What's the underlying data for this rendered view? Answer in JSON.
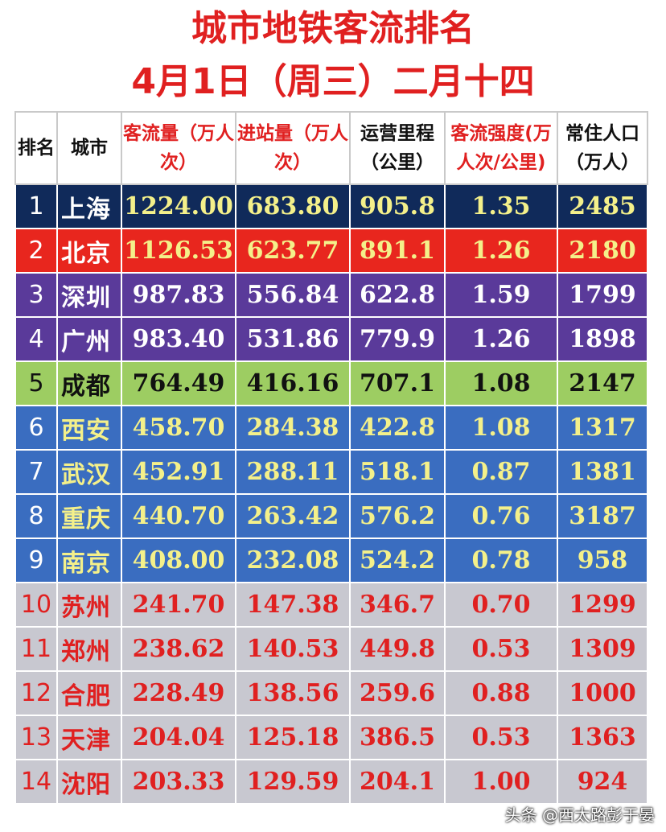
{
  "title": "城市地铁客流排名",
  "date_line": "4月1日（周三）二月十四",
  "headers": {
    "rank": "排名",
    "city": "城市",
    "flow": "客流量（万人次）",
    "entries": "进站量（万人次）",
    "length": "运营里程（公里）",
    "intensity": "客流强度(万人次/公里)",
    "population": "常住人口（万人）"
  },
  "colors": {
    "title_red": "#e02020",
    "navy": "#102a5a",
    "red": "#e8261e",
    "purple": "#5a3a9a",
    "green": "#9dcd62",
    "blue": "#3a6dc0",
    "gray": "#c8c8d0",
    "text_white": "#ffffff",
    "text_yellow": "#f4f08a",
    "text_black": "#111111",
    "text_red": "#e02020"
  },
  "rows": [
    {
      "rank": "1",
      "city": "上海",
      "flow": "1224.00",
      "entries": "683.80",
      "length": "905.8",
      "intensity": "1.35",
      "population": "2485",
      "style": "navy"
    },
    {
      "rank": "2",
      "city": "北京",
      "flow": "1126.53",
      "entries": "623.77",
      "length": "891.1",
      "intensity": "1.26",
      "population": "2180",
      "style": "red"
    },
    {
      "rank": "3",
      "city": "深圳",
      "flow": "987.83",
      "entries": "556.84",
      "length": "622.8",
      "intensity": "1.59",
      "population": "1799",
      "style": "purple"
    },
    {
      "rank": "4",
      "city": "广州",
      "flow": "983.40",
      "entries": "531.86",
      "length": "779.9",
      "intensity": "1.26",
      "population": "1898",
      "style": "purple"
    },
    {
      "rank": "5",
      "city": "成都",
      "flow": "764.49",
      "entries": "416.16",
      "length": "707.1",
      "intensity": "1.08",
      "population": "2147",
      "style": "green"
    },
    {
      "rank": "6",
      "city": "西安",
      "flow": "458.70",
      "entries": "284.38",
      "length": "422.8",
      "intensity": "1.08",
      "population": "1317",
      "style": "blue"
    },
    {
      "rank": "7",
      "city": "武汉",
      "flow": "452.91",
      "entries": "288.11",
      "length": "518.1",
      "intensity": "0.87",
      "population": "1381",
      "style": "blue"
    },
    {
      "rank": "8",
      "city": "重庆",
      "flow": "440.70",
      "entries": "263.42",
      "length": "576.2",
      "intensity": "0.76",
      "population": "3187",
      "style": "blue"
    },
    {
      "rank": "9",
      "city": "南京",
      "flow": "408.00",
      "entries": "232.08",
      "length": "524.2",
      "intensity": "0.78",
      "population": "958",
      "style": "blue"
    },
    {
      "rank": "10",
      "city": "苏州",
      "flow": "241.70",
      "entries": "147.38",
      "length": "346.7",
      "intensity": "0.70",
      "population": "1299",
      "style": "gray"
    },
    {
      "rank": "11",
      "city": "郑州",
      "flow": "238.62",
      "entries": "140.53",
      "length": "449.8",
      "intensity": "0.53",
      "population": "1309",
      "style": "gray"
    },
    {
      "rank": "12",
      "city": "合肥",
      "flow": "228.49",
      "entries": "138.56",
      "length": "259.6",
      "intensity": "0.88",
      "population": "1000",
      "style": "gray"
    },
    {
      "rank": "13",
      "city": "天津",
      "flow": "204.04",
      "entries": "125.18",
      "length": "386.5",
      "intensity": "0.53",
      "population": "1363",
      "style": "gray"
    },
    {
      "rank": "14",
      "city": "沈阳",
      "flow": "203.33",
      "entries": "129.59",
      "length": "204.1",
      "intensity": "1.00",
      "population": "924",
      "style": "gray"
    }
  ],
  "watermark": "头条 @西太路彭于晏"
}
